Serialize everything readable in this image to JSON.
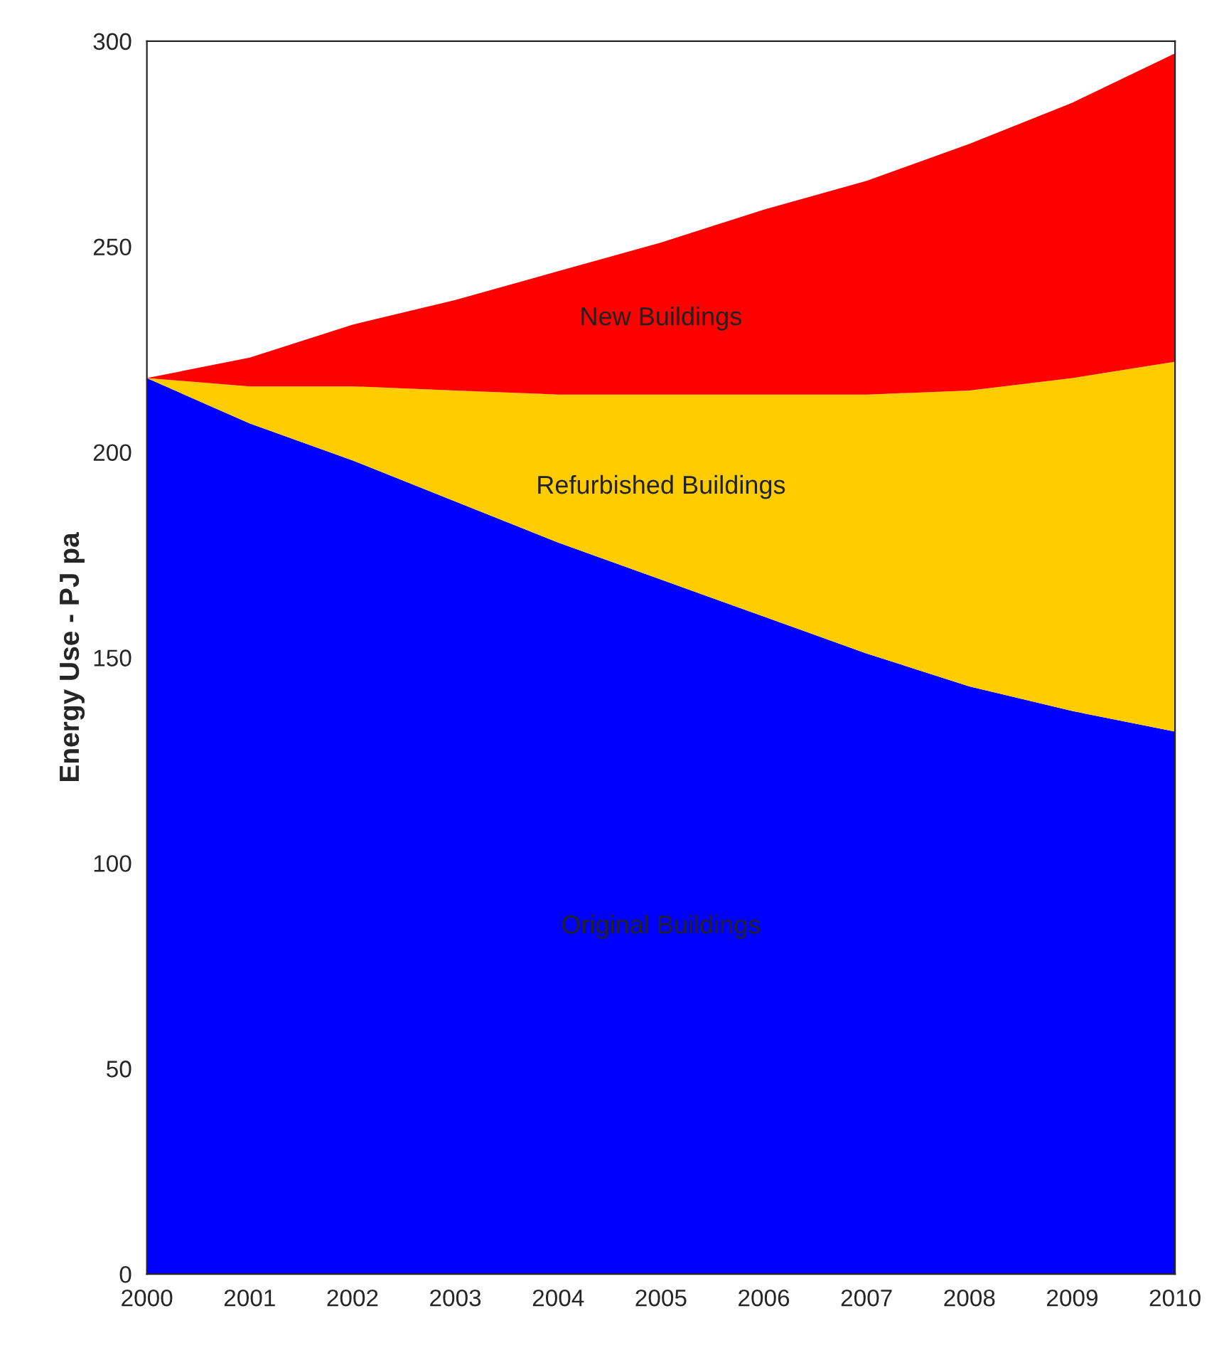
{
  "chart_data": {
    "type": "area",
    "stacked": true,
    "ylabel": "Energy Use - PJ pa",
    "x": [
      2000,
      2001,
      2002,
      2003,
      2004,
      2005,
      2006,
      2007,
      2008,
      2009,
      2010
    ],
    "series": [
      {
        "name": "Original Buildings",
        "color": "#0000ff",
        "values": [
          218,
          207,
          198,
          188,
          178,
          169,
          160,
          151,
          143,
          137,
          132
        ]
      },
      {
        "name": "Refurbished Buildings",
        "color": "#ffcc00",
        "values": [
          0,
          9,
          18,
          27,
          36,
          45,
          54,
          63,
          72,
          81,
          90
        ]
      },
      {
        "name": "New Buildings",
        "color": "#ff0000",
        "values": [
          0,
          7,
          15,
          22,
          30,
          37,
          45,
          52,
          60,
          67,
          75
        ]
      }
    ],
    "xlim": [
      2000,
      2010
    ],
    "xticks": [
      2000,
      2001,
      2002,
      2003,
      2004,
      2005,
      2006,
      2007,
      2008,
      2009,
      2010
    ],
    "ylim": [
      0,
      300
    ],
    "yticks": [
      0,
      50,
      100,
      150,
      200,
      250,
      300
    ],
    "grid": false,
    "legend": false
  }
}
